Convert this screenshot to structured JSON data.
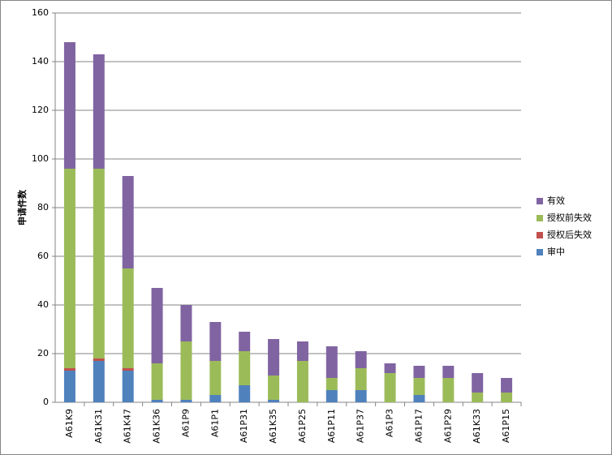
{
  "chart_data": {
    "type": "stacked-bar",
    "y_label": "申请件数",
    "categories": [
      "A61K9",
      "A61K31",
      "A61K47",
      "A61K36",
      "A61P9",
      "A61P1",
      "A61P31",
      "A61K35",
      "A61P25",
      "A61P11",
      "A61P37",
      "A61P3",
      "A61P17",
      "A61P29",
      "A61K33",
      "A61P15"
    ],
    "series": [
      {
        "name": "审中",
        "color": "#4f81bd",
        "values": [
          13,
          17,
          13,
          1,
          1,
          3,
          7,
          1,
          0,
          5,
          5,
          0,
          3,
          0,
          0,
          0
        ]
      },
      {
        "name": "授权后失效",
        "color": "#c0504d",
        "values": [
          1,
          1,
          1,
          0,
          0,
          0,
          0,
          0,
          0,
          0,
          0,
          0,
          0,
          0,
          0,
          0
        ]
      },
      {
        "name": "授权前失效",
        "color": "#9bbb59",
        "values": [
          82,
          78,
          41,
          15,
          24,
          14,
          14,
          10,
          17,
          5,
          9,
          12,
          7,
          10,
          4,
          4
        ]
      },
      {
        "name": "有效",
        "color": "#8064a2",
        "values": [
          52,
          47,
          38,
          31,
          15,
          16,
          8,
          15,
          8,
          13,
          7,
          4,
          5,
          5,
          8,
          6
        ]
      }
    ],
    "ylim": [
      0,
      160
    ],
    "yticks": [
      0,
      20,
      40,
      60,
      80,
      100,
      120,
      140,
      160
    ],
    "grid": true,
    "legend": "right"
  }
}
